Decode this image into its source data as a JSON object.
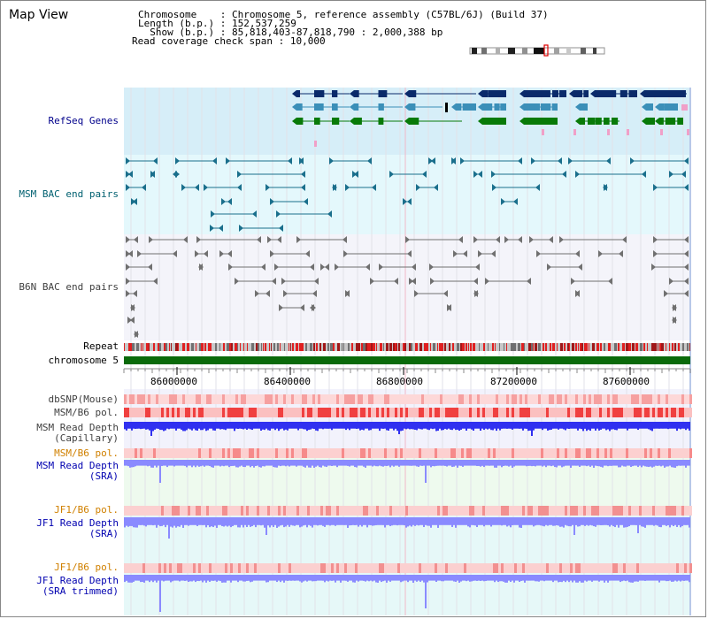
{
  "title": "Map View",
  "info": {
    "chromosome_key": "Chromosome",
    "chromosome_val": "Chromosome 5, reference assembly (C57BL/6J) (Build 37)",
    "length_key": "Length (b.p.)",
    "length_val": "152,537,259",
    "show_key": "Show (b.p.)",
    "show_val": "85,818,403-87,818,790 : 2,000,388 bp",
    "span_key": "Read coverage check span",
    "span_val": "10,000"
  },
  "tracks": {
    "refseq": "RefSeq Genes",
    "msm_bac": "MSM BAC end pairs",
    "b6n_bac": "B6N BAC end pairs",
    "repeat": "Repeat",
    "chromosome": "chromosome 5",
    "dbsnp": "dbSNP(Mouse)",
    "msm_b6_pol": "MSM/B6 pol.",
    "msm_depth_cap_1": "MSM Read Depth",
    "msm_depth_cap_2": "(Capillary)",
    "msm_b6_pol2": "MSM/B6 pol.",
    "msm_depth_sra_1": "MSM Read Depth",
    "msm_depth_sra_2": "(SRA)",
    "jf1_b6_pol": "JF1/B6 pol.",
    "jf1_depth_sra_1": "JF1 Read Depth",
    "jf1_depth_sra_2": "(SRA)",
    "jf1_b6_pol2": "JF1/B6 pol.",
    "jf1_depth_trim_1": "JF1 Read Depth",
    "jf1_depth_trim_2": "(SRA trimmed)"
  },
  "axis_ticks": [
    "86000000",
    "86400000",
    "86800000",
    "87200000",
    "87600000"
  ],
  "colors": {
    "refseq_bg": "#d6eef8",
    "refseq_navy": "#0a2a6a",
    "refseq_blue": "#3b8fb8",
    "refseq_green": "#087a08",
    "refseq_pink": "#f0a0c8",
    "msm_bg": "#e4f8fc",
    "msm_line": "#1a6f8c",
    "b6n_bg": "#f4f4fa",
    "b6n_line": "#707070",
    "repeat_red": "#e02020",
    "chrom_green": "#0a6a0a",
    "depth_blue": "#3030f0",
    "depth_light": "#8a8aff",
    "pol_pink": "#f8b8b8",
    "pol_red": "#f04040"
  }
}
